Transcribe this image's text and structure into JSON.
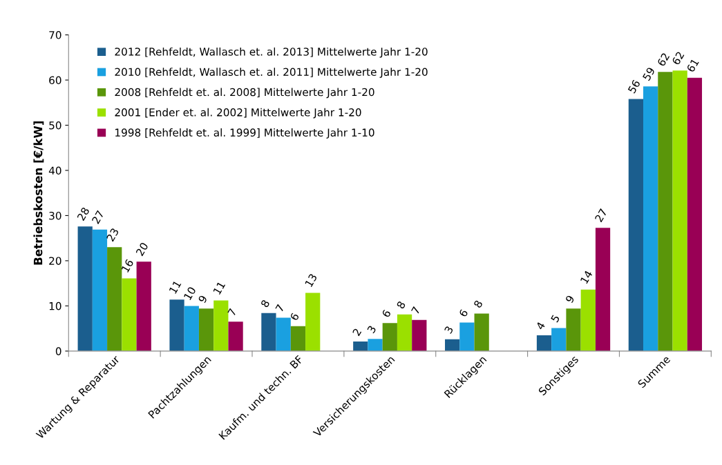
{
  "chart_data": {
    "type": "bar",
    "ylabel": "Betriebskosten [€/kW]",
    "categories": [
      "Wartung & Reparatur",
      "Pachtzahlungen",
      "Kaufm. und techn. BF",
      "Versicherungskosten",
      "Rücklagen",
      "Sonstiges",
      "Summe"
    ],
    "series": [
      {
        "name": "2012 [Rehfeldt, Wallasch et. al. 2013] Mittelwerte Jahr 1-20",
        "color": "#1b5e8e",
        "values": [
          27.6,
          11.4,
          8.4,
          2.1,
          2.6,
          3.5,
          55.8
        ],
        "value_labels": [
          "28",
          "11",
          "8",
          "2",
          "3",
          "4",
          "56"
        ]
      },
      {
        "name": "2010 [Rehfeldt, Wallasch et. al. 2011] Mittelwerte Jahr 1-20",
        "color": "#1aa0e0",
        "values": [
          26.9,
          10.0,
          7.4,
          2.7,
          6.3,
          5.1,
          58.6
        ],
        "value_labels": [
          "27",
          "10",
          "7",
          "3",
          "6",
          "5",
          "59"
        ]
      },
      {
        "name": "2008 [Rehfeldt et. al. 2008] Mittelwerte Jahr 1-20",
        "color": "#5a960a",
        "values": [
          23.0,
          9.4,
          5.5,
          6.2,
          8.3,
          9.4,
          61.8
        ],
        "value_labels": [
          "23",
          "9",
          "6",
          "6",
          "8",
          "9",
          "62"
        ]
      },
      {
        "name": "2001 [Ender et. al. 2002] Mittelwerte Jahr 1-20",
        "color": "#9be000",
        "values": [
          16.1,
          11.2,
          12.9,
          8.1,
          null,
          13.6,
          62.1
        ],
        "value_labels": [
          "16",
          "11",
          "13",
          "8",
          null,
          "14",
          "62"
        ]
      },
      {
        "name": "1998 [Rehfeldt et. al. 1999] Mittelwerte Jahr 1-10",
        "color": "#990055",
        "values": [
          19.8,
          6.5,
          null,
          6.9,
          null,
          27.3,
          60.5
        ],
        "value_labels": [
          "20",
          "7",
          null,
          "7",
          null,
          "27",
          "61"
        ]
      }
    ],
    "ylim": [
      0,
      70
    ],
    "yticks": [
      0,
      10,
      20,
      30,
      40,
      50,
      60,
      70
    ],
    "grid": false,
    "legend": "top left"
  }
}
